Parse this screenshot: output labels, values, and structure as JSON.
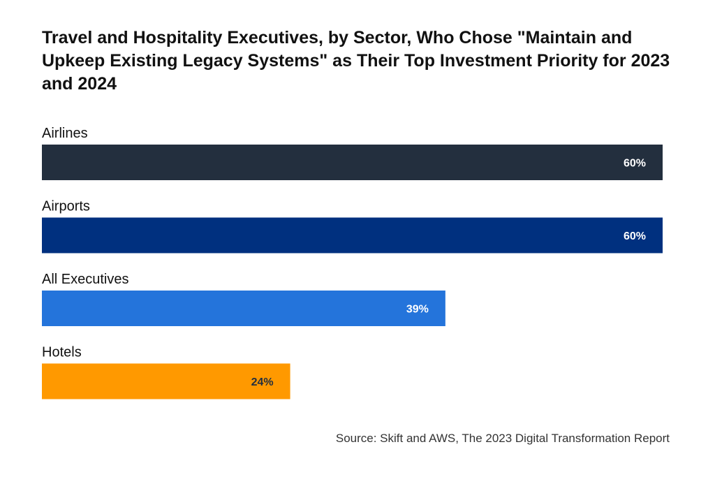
{
  "chart_data": {
    "type": "bar",
    "orientation": "horizontal",
    "title": "Travel and Hospitality Executives, by Sector, Who Chose \"Maintain and Upkeep Existing Legacy Systems\" as Their Top Investment Priority for 2023 and 2024",
    "categories": [
      "Airlines",
      "Airports",
      "All Executives",
      "Hotels"
    ],
    "values": [
      60,
      60,
      39,
      24
    ],
    "value_labels": [
      "60%",
      "60%",
      "39%",
      "24%"
    ],
    "unit": "%",
    "colors": [
      "#232f3e",
      "#00307f",
      "#2474db",
      "#ff9900"
    ],
    "label_colors": [
      "#ffffff",
      "#ffffff",
      "#ffffff",
      "#232f3e"
    ],
    "xlim": [
      0,
      60
    ],
    "grid": false,
    "legend": "none",
    "source": "Source: Skift and AWS, The 2023 Digital Transformation Report"
  }
}
